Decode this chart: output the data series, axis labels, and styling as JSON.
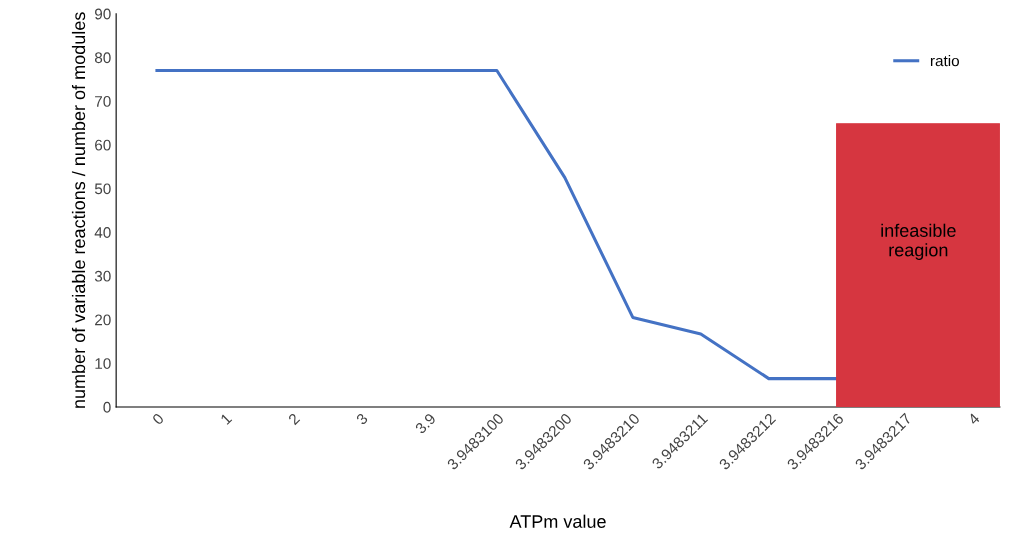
{
  "chart_data": {
    "type": "line",
    "xlabel": "ATPm value",
    "ylabel": "number of variable reactions / number of modules",
    "categories": [
      "0",
      "1",
      "2",
      "3",
      "3.9",
      "3.9483100",
      "3.9483200",
      "3.9483210",
      "3.9483211",
      "3.9483212",
      "3.9483216",
      "3.9483217",
      "4"
    ],
    "series": [
      {
        "name": "ratio",
        "color": "#4472c4",
        "values": [
          77,
          77,
          77,
          77,
          77,
          77,
          52.5,
          20.5,
          16.7,
          6.5,
          6.5,
          null,
          null
        ]
      }
    ],
    "ylim": [
      0,
      90
    ],
    "yticks": [
      0,
      10,
      20,
      30,
      40,
      50,
      60,
      70,
      80,
      90
    ],
    "bands": [
      {
        "axis": "x",
        "from": "3.9483216",
        "to": "4",
        "label": "infeasible\nreagion",
        "color": "#d63640"
      }
    ],
    "legend": "top right",
    "grid": false,
    "marker": "none",
    "line_style": "solid"
  }
}
